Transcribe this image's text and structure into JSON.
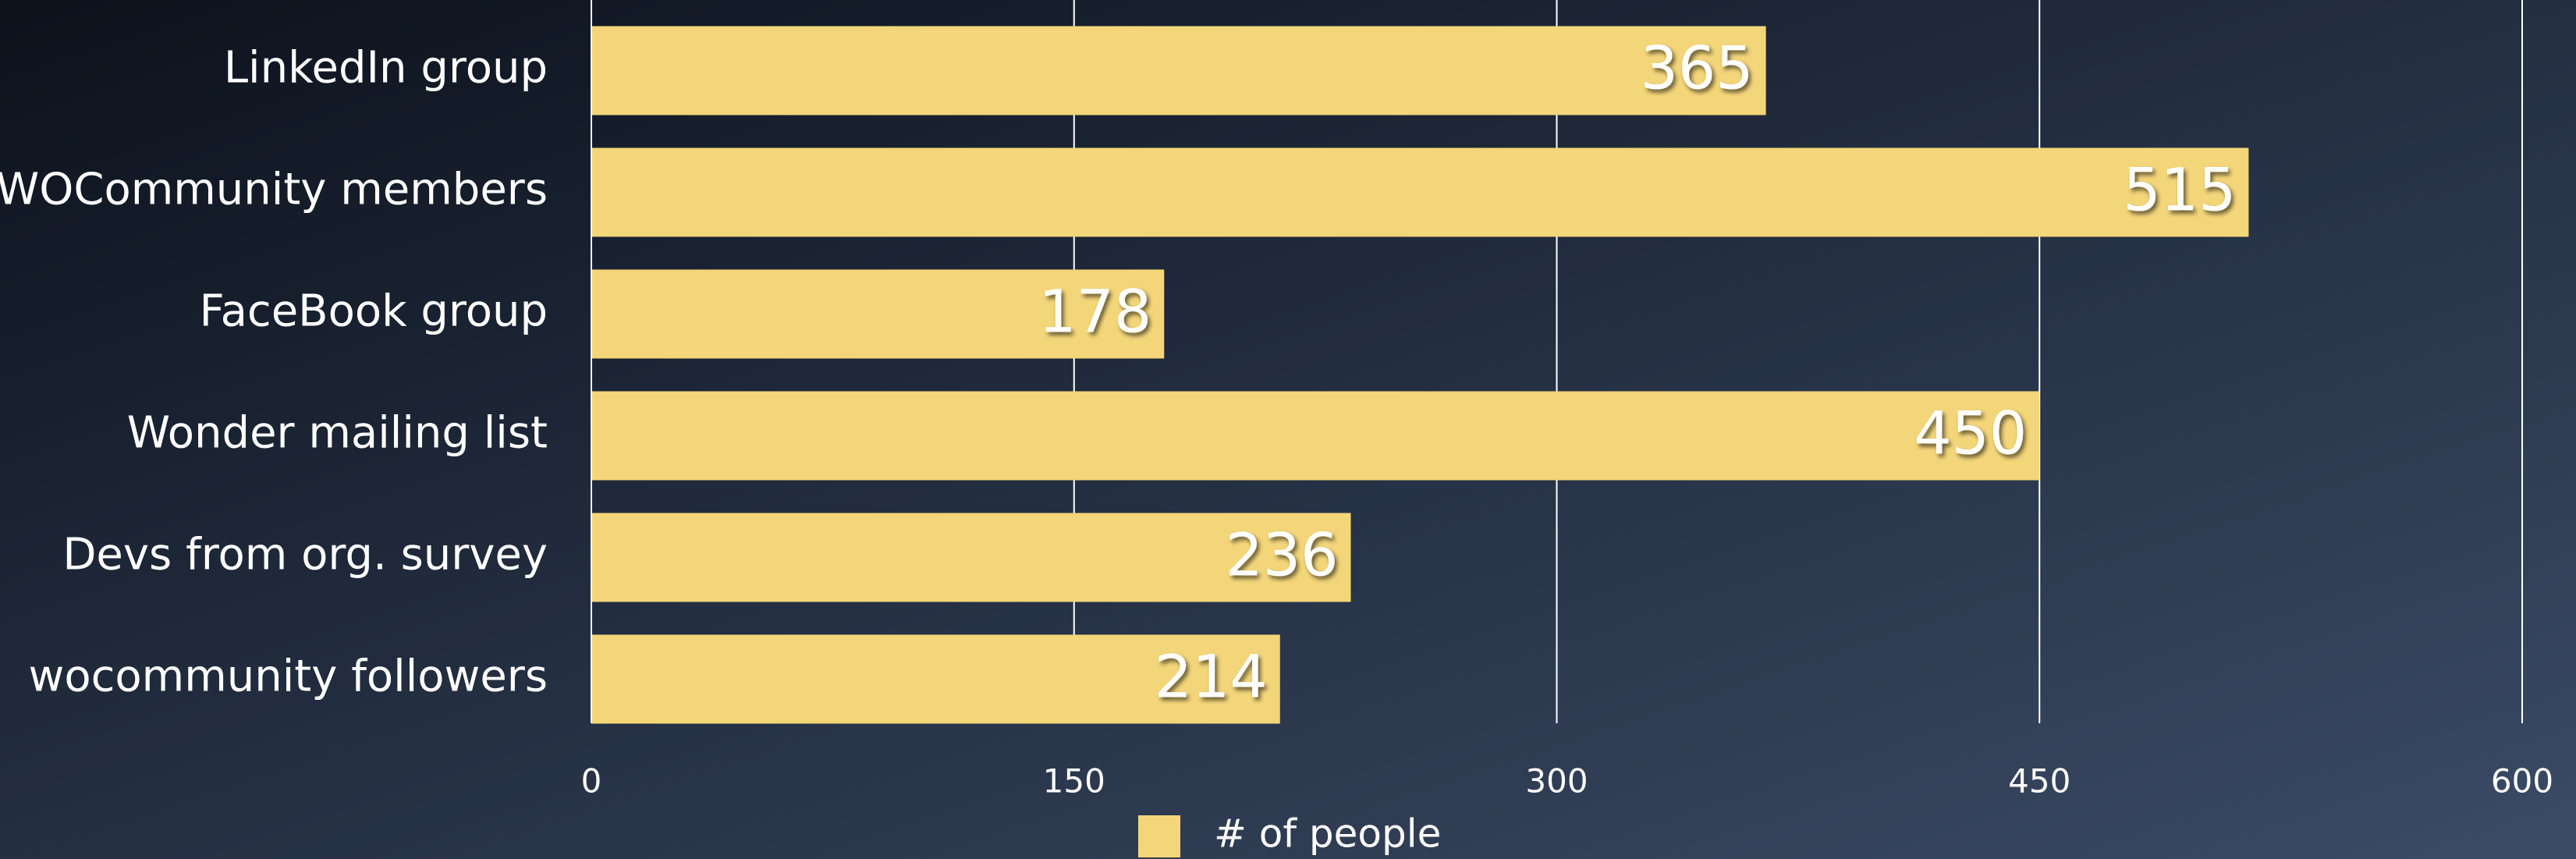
{
  "chart_data": {
    "type": "bar",
    "orientation": "horizontal",
    "categories": [
      "LinkedIn group",
      "WOCommunity members",
      "FaceBook group",
      "Wonder mailing list",
      "Devs from org. survey",
      "wocommunity followers"
    ],
    "series": [
      {
        "name": "# of people",
        "color": "#f4d67a",
        "values": [
          365,
          515,
          178,
          450,
          236,
          214
        ]
      }
    ],
    "xlim": [
      0,
      600
    ],
    "xticks": [
      0,
      150,
      300,
      450,
      600
    ],
    "grid": true,
    "legend": "bottom"
  }
}
